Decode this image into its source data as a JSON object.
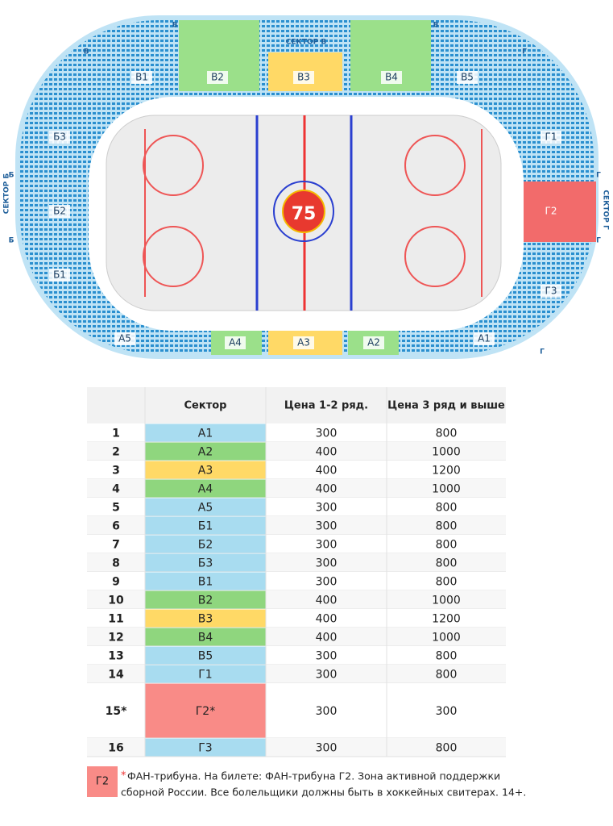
{
  "map": {
    "headings": [
      "СЕКТОР В",
      "СЕКТОР Б",
      "СЕКТОР Г"
    ],
    "letters": [
      "В",
      "В",
      "В",
      "Г",
      "Б",
      "Б",
      "Г",
      "Г",
      "Г"
    ],
    "sectors": [
      "В1",
      "В2",
      "В3",
      "В4",
      "В5",
      "Б3",
      "Б2",
      "Б1",
      "А5",
      "А4",
      "А3",
      "А2",
      "А1",
      "Г1",
      "Г2",
      "Г3"
    ],
    "logo": "75"
  },
  "table": {
    "header": [
      "Сектор",
      "Цена 1-2 ряд.",
      "Цена 3 ряд и выше"
    ],
    "rows": [
      [
        "1",
        "А1",
        300,
        800
      ],
      [
        "2",
        "А2",
        400,
        1000
      ],
      [
        "3",
        "А3",
        400,
        1200
      ],
      [
        "4",
        "А4",
        400,
        1000
      ],
      [
        "5",
        "А5",
        300,
        800
      ],
      [
        "6",
        "Б1",
        300,
        800
      ],
      [
        "7",
        "Б2",
        300,
        800
      ],
      [
        "8",
        "Б3",
        300,
        800
      ],
      [
        "9",
        "В1",
        300,
        800
      ],
      [
        "10",
        "В2",
        400,
        1000
      ],
      [
        "11",
        "В3",
        400,
        1200
      ],
      [
        "12",
        "В4",
        400,
        1000
      ],
      [
        "13",
        "В5",
        300,
        800
      ],
      [
        "14",
        "Г1",
        300,
        800
      ],
      [
        "15*",
        "Г2*",
        300,
        300
      ],
      [
        "16",
        "Г3",
        300,
        800
      ]
    ],
    "colors": [
      "#a8dcf0",
      "#8fd67e",
      "#ffd966",
      "#8fd67e",
      "#a8dcf0",
      "#a8dcf0",
      "#a8dcf0",
      "#a8dcf0",
      "#a8dcf0",
      "#8fd67e",
      "#ffd966",
      "#8fd67e",
      "#a8dcf0",
      "#a8dcf0",
      "#f98b87",
      "#a8dcf0"
    ]
  },
  "footnote": {
    "badge": "Г2",
    "star": "*",
    "lines": [
      "ФАН-трибуна. На билете: ФАН-трибуна Г2. Зона активной поддержки",
      "сборной России. Все болельщики должны быть в хоккейных свитерах. 14+."
    ]
  }
}
